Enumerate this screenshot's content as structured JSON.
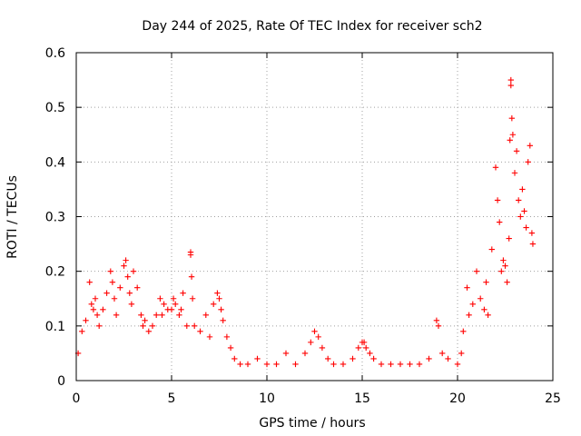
{
  "chart_data": {
    "type": "scatter",
    "title": "Day 244 of 2025, Rate Of TEC Index for receiver sch2",
    "xlabel": "GPS time / hours",
    "ylabel": "ROTI / TECUs",
    "xlim": [
      0,
      25
    ],
    "ylim": [
      0,
      0.6
    ],
    "xticks": [
      0,
      5,
      10,
      15,
      20,
      25
    ],
    "xtick_labels": [
      "0",
      "5",
      "10",
      "15",
      "20",
      "25"
    ],
    "yticks": [
      0,
      0.1,
      0.2,
      0.3,
      0.4,
      0.5,
      0.6
    ],
    "ytick_labels": [
      "0",
      "0.1",
      "0.2",
      "0.3",
      "0.4",
      "0.5",
      "0.6"
    ],
    "grid": true,
    "marker": "plus",
    "color": "#ff0000",
    "series": [
      {
        "x": [
          0.1,
          0.3,
          0.5,
          0.7,
          0.8,
          0.9,
          1.0,
          1.1,
          1.2,
          1.4,
          1.6,
          1.8,
          1.9,
          2.0,
          2.1,
          2.3,
          2.5,
          2.6,
          2.7,
          2.8,
          2.9,
          3.0,
          3.2,
          3.4,
          3.5,
          3.6,
          3.8,
          4.0,
          4.2,
          4.4,
          4.5,
          4.6,
          4.8,
          5.0,
          5.1,
          5.2,
          5.4,
          5.5,
          5.6,
          5.8,
          6.0,
          6.0,
          6.05,
          6.1,
          6.2,
          6.5,
          6.8,
          7.0,
          7.2,
          7.4,
          7.5,
          7.6,
          7.7,
          7.9,
          8.1,
          8.3,
          8.6,
          9.0,
          9.5,
          10.0,
          10.5,
          11.0,
          11.5,
          12.0,
          12.3,
          12.5,
          12.7,
          12.9,
          13.2,
          13.5,
          14.0,
          14.5,
          14.8,
          15.0,
          15.1,
          15.2,
          15.4,
          15.6,
          16.0,
          16.5,
          17.0,
          17.5,
          18.0,
          18.5,
          18.9,
          19.0,
          19.2,
          19.5,
          20.0,
          20.2,
          20.3,
          20.5,
          20.6,
          20.8,
          21.0,
          21.2,
          21.4,
          21.5,
          21.6,
          21.8,
          22.0,
          22.1,
          22.2,
          22.3,
          22.4,
          22.5,
          22.6,
          22.7,
          22.75,
          22.8,
          22.8,
          22.85,
          22.9,
          23.0,
          23.1,
          23.2,
          23.3,
          23.4,
          23.5,
          23.6,
          23.7,
          23.8,
          23.9,
          23.95
        ],
        "y": [
          0.05,
          0.09,
          0.11,
          0.18,
          0.14,
          0.13,
          0.15,
          0.12,
          0.1,
          0.13,
          0.16,
          0.2,
          0.18,
          0.15,
          0.12,
          0.17,
          0.21,
          0.22,
          0.19,
          0.16,
          0.14,
          0.2,
          0.17,
          0.12,
          0.1,
          0.11,
          0.09,
          0.1,
          0.12,
          0.15,
          0.12,
          0.14,
          0.13,
          0.13,
          0.15,
          0.14,
          0.12,
          0.13,
          0.16,
          0.1,
          0.235,
          0.23,
          0.19,
          0.15,
          0.1,
          0.09,
          0.12,
          0.08,
          0.14,
          0.16,
          0.15,
          0.13,
          0.11,
          0.08,
          0.06,
          0.04,
          0.03,
          0.03,
          0.04,
          0.03,
          0.03,
          0.05,
          0.03,
          0.05,
          0.07,
          0.09,
          0.08,
          0.06,
          0.04,
          0.03,
          0.03,
          0.04,
          0.06,
          0.07,
          0.07,
          0.06,
          0.05,
          0.04,
          0.03,
          0.03,
          0.03,
          0.03,
          0.03,
          0.04,
          0.11,
          0.1,
          0.05,
          0.04,
          0.03,
          0.05,
          0.09,
          0.17,
          0.12,
          0.14,
          0.2,
          0.15,
          0.13,
          0.18,
          0.12,
          0.24,
          0.39,
          0.33,
          0.29,
          0.2,
          0.22,
          0.21,
          0.18,
          0.26,
          0.44,
          0.55,
          0.54,
          0.48,
          0.45,
          0.38,
          0.42,
          0.33,
          0.3,
          0.35,
          0.31,
          0.28,
          0.4,
          0.43,
          0.27,
          0.25
        ]
      }
    ]
  }
}
